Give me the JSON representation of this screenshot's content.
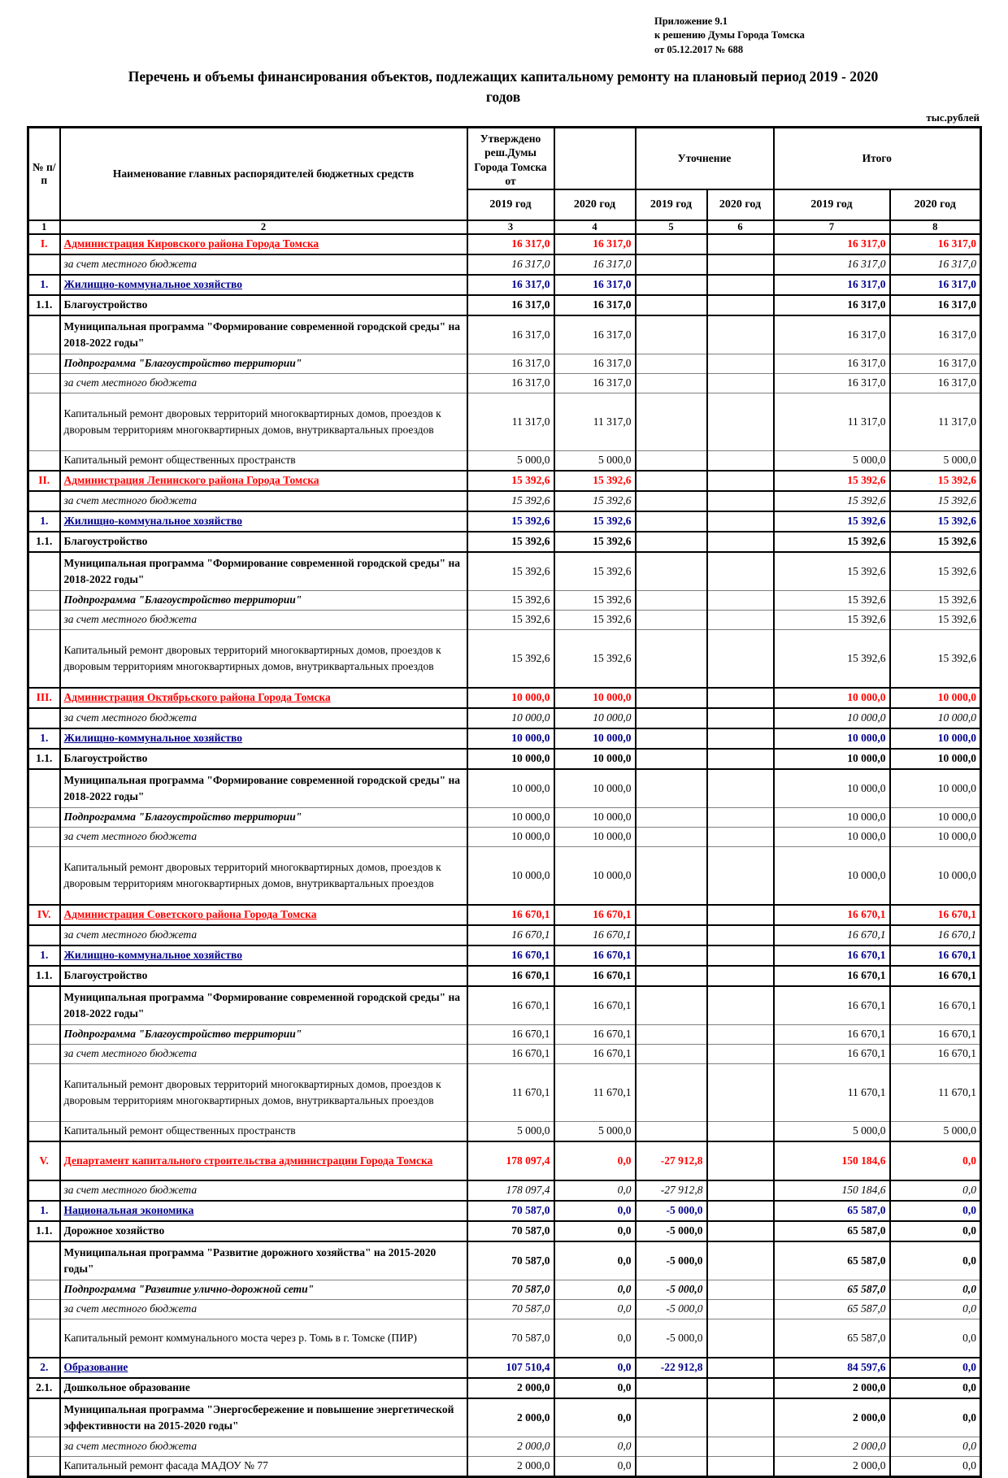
{
  "meta": {
    "appendix_lines": [
      "Приложение 9.1",
      "к решению Думы Города Томска",
      "от 05.12.2017 № 688"
    ],
    "title_line1": "Перечень и объемы финансирования объектов, подлежащих капитальному ремонту на плановый период  2019 - 2020",
    "title_line2": "годов",
    "units_label": "тыс.рублей",
    "accent_red": "#ff0000",
    "accent_blue": "#00008b"
  },
  "table": {
    "header": {
      "num": "№ п/п",
      "name": "Наименование главных распорядителей бюджетных средств",
      "approved": "Утверждено реш.Думы Города Томска от",
      "blank": "",
      "clarification": "Уточнение",
      "total": "Итого",
      "years": [
        "2019 год",
        "2020 год",
        "2019 год",
        "2020 год",
        "2019 год",
        "2020 год"
      ],
      "col_ids": [
        "1",
        "2",
        "3",
        "4",
        "5",
        "6",
        "7",
        "8"
      ]
    },
    "rows": [
      {
        "num": "I.",
        "name": "Администрация Кировского района Города Томска",
        "ns": "red",
        "vs": "red",
        "w": "heavy",
        "h": 1,
        "v": [
          "16 317,0",
          "16 317,0",
          "",
          "",
          "16 317,0",
          "16 317,0"
        ]
      },
      {
        "num": "",
        "name": "за счет местного бюджета",
        "ns": "i",
        "vs": "i",
        "w": "heavy",
        "h": 1,
        "v": [
          "16 317,0",
          "16 317,0",
          "",
          "",
          "16 317,0",
          "16 317,0"
        ]
      },
      {
        "num": "1.",
        "name": "Жилищно-коммунальное хозяйство",
        "ns": "blue",
        "vs": "blue",
        "w": "heavy",
        "h": 1,
        "v": [
          "16 317,0",
          "16 317,0",
          "",
          "",
          "16 317,0",
          "16 317,0"
        ]
      },
      {
        "num": "1.1.",
        "name": "Благоустройство",
        "ns": "b",
        "vs": "b",
        "w": "heavy",
        "h": 1,
        "v": [
          "16 317,0",
          "16 317,0",
          "",
          "",
          "16 317,0",
          "16 317,0"
        ]
      },
      {
        "num": "",
        "name": "Муниципальная программа \"Формирование современной городской среды\" на 2018-2022 годы\"",
        "ns": "b",
        "vs": "n",
        "w": "light",
        "h": 2,
        "v": [
          "16 317,0",
          "16 317,0",
          "",
          "",
          "16 317,0",
          "16 317,0"
        ]
      },
      {
        "num": "",
        "name": "Подпрограмма \"Благоустройство территории\"",
        "ns": "bi",
        "vs": "n",
        "w": "light",
        "h": 1,
        "v": [
          "16 317,0",
          "16 317,0",
          "",
          "",
          "16 317,0",
          "16 317,0"
        ]
      },
      {
        "num": "",
        "name": "за счет местного бюджета",
        "ns": "i",
        "vs": "n",
        "w": "light",
        "h": 1,
        "v": [
          "16 317,0",
          "16 317,0",
          "",
          "",
          "16 317,0",
          "16 317,0"
        ]
      },
      {
        "num": "",
        "name": "Капитальный ремонт дворовых территорий многоквартирных домов, проездов к дворовым территориям многоквартирных домов, внутриквартальных проездов",
        "ns": "n",
        "vs": "n",
        "w": "light",
        "h": 3,
        "v": [
          "11 317,0",
          "11 317,0",
          "",
          "",
          "11 317,0",
          "11 317,0"
        ]
      },
      {
        "num": "",
        "name": "Капитальный ремонт общественных пространств",
        "ns": "n",
        "vs": "n",
        "w": "light",
        "h": 1,
        "v": [
          "5 000,0",
          "5 000,0",
          "",
          "",
          "5 000,0",
          "5 000,0"
        ]
      },
      {
        "num": "II.",
        "name": "Администрация Ленинского района Города Томска",
        "ns": "red",
        "vs": "red",
        "w": "heavy",
        "h": 1,
        "v": [
          "15 392,6",
          "15 392,6",
          "",
          "",
          "15 392,6",
          "15 392,6"
        ]
      },
      {
        "num": "",
        "name": "за счет местного бюджета",
        "ns": "i",
        "vs": "i",
        "w": "heavy",
        "h": 1,
        "v": [
          "15 392,6",
          "15 392,6",
          "",
          "",
          "15 392,6",
          "15 392,6"
        ]
      },
      {
        "num": "1.",
        "name": "Жилищно-коммунальное хозяйство",
        "ns": "blue",
        "vs": "blue",
        "w": "heavy",
        "h": 1,
        "v": [
          "15 392,6",
          "15 392,6",
          "",
          "",
          "15 392,6",
          "15 392,6"
        ]
      },
      {
        "num": "1.1.",
        "name": "Благоустройство",
        "ns": "b",
        "vs": "b",
        "w": "heavy",
        "h": 1,
        "v": [
          "15 392,6",
          "15 392,6",
          "",
          "",
          "15 392,6",
          "15 392,6"
        ]
      },
      {
        "num": "",
        "name": "Муниципальная программа \"Формирование современной городской среды\" на 2018-2022 годы\"",
        "ns": "b",
        "vs": "n",
        "w": "light",
        "h": 2,
        "v": [
          "15 392,6",
          "15 392,6",
          "",
          "",
          "15 392,6",
          "15 392,6"
        ]
      },
      {
        "num": "",
        "name": "Подпрограмма \"Благоустройство территории\"",
        "ns": "bi",
        "vs": "n",
        "w": "light",
        "h": 1,
        "v": [
          "15 392,6",
          "15 392,6",
          "",
          "",
          "15 392,6",
          "15 392,6"
        ]
      },
      {
        "num": "",
        "name": "за счет местного бюджета",
        "ns": "i",
        "vs": "n",
        "w": "light",
        "h": 1,
        "v": [
          "15 392,6",
          "15 392,6",
          "",
          "",
          "15 392,6",
          "15 392,6"
        ]
      },
      {
        "num": "",
        "name": "Капитальный ремонт дворовых территорий многоквартирных домов, проездов к дворовым территориям многоквартирных домов, внутриквартальных проездов",
        "ns": "n",
        "vs": "n",
        "w": "light",
        "h": 3,
        "v": [
          "15 392,6",
          "15 392,6",
          "",
          "",
          "15 392,6",
          "15 392,6"
        ]
      },
      {
        "num": "III.",
        "name": "Администрация Октябрьского района Города Томска",
        "ns": "red",
        "vs": "red",
        "w": "heavy",
        "h": 1,
        "v": [
          "10 000,0",
          "10 000,0",
          "",
          "",
          "10 000,0",
          "10 000,0"
        ]
      },
      {
        "num": "",
        "name": "за счет местного бюджета",
        "ns": "i",
        "vs": "i",
        "w": "heavy",
        "h": 1,
        "v": [
          "10 000,0",
          "10 000,0",
          "",
          "",
          "10 000,0",
          "10 000,0"
        ]
      },
      {
        "num": "1.",
        "name": "Жилищно-коммунальное хозяйство",
        "ns": "blue",
        "vs": "blue",
        "w": "heavy",
        "h": 1,
        "v": [
          "10 000,0",
          "10 000,0",
          "",
          "",
          "10 000,0",
          "10 000,0"
        ]
      },
      {
        "num": "1.1.",
        "name": "Благоустройство",
        "ns": "b",
        "vs": "b",
        "w": "heavy",
        "h": 1,
        "v": [
          "10 000,0",
          "10 000,0",
          "",
          "",
          "10 000,0",
          "10 000,0"
        ]
      },
      {
        "num": "",
        "name": "Муниципальная программа \"Формирование современной городской среды\" на 2018-2022 годы\"",
        "ns": "b",
        "vs": "n",
        "w": "light",
        "h": 2,
        "v": [
          "10 000,0",
          "10 000,0",
          "",
          "",
          "10 000,0",
          "10 000,0"
        ]
      },
      {
        "num": "",
        "name": "Подпрограмма \"Благоустройство территории\"",
        "ns": "bi",
        "vs": "n",
        "w": "light",
        "h": 1,
        "v": [
          "10 000,0",
          "10 000,0",
          "",
          "",
          "10 000,0",
          "10 000,0"
        ]
      },
      {
        "num": "",
        "name": "за счет местного бюджета",
        "ns": "i",
        "vs": "n",
        "w": "light",
        "h": 1,
        "v": [
          "10 000,0",
          "10 000,0",
          "",
          "",
          "10 000,0",
          "10 000,0"
        ]
      },
      {
        "num": "",
        "name": "Капитальный ремонт дворовых территорий многоквартирных домов, проездов к дворовым территориям многоквартирных домов, внутриквартальных проездов",
        "ns": "n",
        "vs": "n",
        "w": "light",
        "h": 3,
        "v": [
          "10 000,0",
          "10 000,0",
          "",
          "",
          "10 000,0",
          "10 000,0"
        ]
      },
      {
        "num": "IV.",
        "name": "Администрация Советского района Города Томска",
        "ns": "red",
        "vs": "red",
        "w": "heavy",
        "h": 1,
        "v": [
          "16 670,1",
          "16 670,1",
          "",
          "",
          "16 670,1",
          "16 670,1"
        ]
      },
      {
        "num": "",
        "name": "за счет местного бюджета",
        "ns": "i",
        "vs": "i",
        "w": "heavy",
        "h": 1,
        "v": [
          "16 670,1",
          "16 670,1",
          "",
          "",
          "16 670,1",
          "16 670,1"
        ]
      },
      {
        "num": "1.",
        "name": "Жилищно-коммунальное хозяйство",
        "ns": "blue",
        "vs": "blue",
        "w": "heavy",
        "h": 1,
        "v": [
          "16 670,1",
          "16 670,1",
          "",
          "",
          "16 670,1",
          "16 670,1"
        ]
      },
      {
        "num": "1.1.",
        "name": "Благоустройство",
        "ns": "b",
        "vs": "b",
        "w": "heavy",
        "h": 1,
        "v": [
          "16 670,1",
          "16 670,1",
          "",
          "",
          "16 670,1",
          "16 670,1"
        ]
      },
      {
        "num": "",
        "name": "Муниципальная программа \"Формирование современной городской среды\" на 2018-2022 годы\"",
        "ns": "b",
        "vs": "n",
        "w": "light",
        "h": 2,
        "v": [
          "16 670,1",
          "16 670,1",
          "",
          "",
          "16 670,1",
          "16 670,1"
        ]
      },
      {
        "num": "",
        "name": "Подпрограмма \"Благоустройство территории\"",
        "ns": "bi",
        "vs": "n",
        "w": "light",
        "h": 1,
        "v": [
          "16 670,1",
          "16 670,1",
          "",
          "",
          "16 670,1",
          "16 670,1"
        ]
      },
      {
        "num": "",
        "name": "за счет местного бюджета",
        "ns": "i",
        "vs": "n",
        "w": "light",
        "h": 1,
        "v": [
          "16 670,1",
          "16 670,1",
          "",
          "",
          "16 670,1",
          "16 670,1"
        ]
      },
      {
        "num": "",
        "name": "Капитальный ремонт дворовых территорий многоквартирных домов, проездов к дворовым территориям многоквартирных домов, внутриквартальных проездов",
        "ns": "n",
        "vs": "n",
        "w": "light",
        "h": 3,
        "v": [
          "11 670,1",
          "11 670,1",
          "",
          "",
          "11 670,1",
          "11 670,1"
        ]
      },
      {
        "num": "",
        "name": "Капитальный ремонт общественных пространств",
        "ns": "n",
        "vs": "n",
        "w": "light",
        "h": 1,
        "v": [
          "5 000,0",
          "5 000,0",
          "",
          "",
          "5 000,0",
          "5 000,0"
        ]
      },
      {
        "num": "V.",
        "name": "Департамент капитального строительства администрации Города Томска",
        "ns": "red",
        "vs": "red",
        "w": "heavy",
        "h": 2,
        "v": [
          "178 097,4",
          "0,0",
          "-27 912,8",
          "",
          "150 184,6",
          "0,0"
        ]
      },
      {
        "num": "",
        "name": "за счет местного бюджета",
        "ns": "i",
        "vs": "i",
        "w": "heavy",
        "h": 1,
        "v": [
          "178 097,4",
          "0,0",
          "-27 912,8",
          "",
          "150 184,6",
          "0,0"
        ]
      },
      {
        "num": "1.",
        "name": "Национальная экономика",
        "ns": "blue",
        "vs": "blue",
        "w": "heavy",
        "h": 1,
        "v": [
          "70 587,0",
          "0,0",
          "-5 000,0",
          "",
          "65 587,0",
          "0,0"
        ]
      },
      {
        "num": "1.1.",
        "name": "Дорожное хозяйство",
        "ns": "b",
        "vs": "b",
        "w": "heavy",
        "h": 1,
        "v": [
          "70 587,0",
          "0,0",
          "-5 000,0",
          "",
          "65 587,0",
          "0,0"
        ]
      },
      {
        "num": "",
        "name": "Муниципальная программа \"Развитие дорожного хозяйства\" на 2015-2020 годы\"",
        "ns": "b",
        "vs": "b",
        "w": "light",
        "h": 2,
        "v": [
          "70 587,0",
          "0,0",
          "-5 000,0",
          "",
          "65 587,0",
          "0,0"
        ]
      },
      {
        "num": "",
        "name": "Подпрограмма \"Развитие улично-дорожной сети\"",
        "ns": "bi",
        "vs": "bi",
        "w": "light",
        "h": 1,
        "v": [
          "70 587,0",
          "0,0",
          "-5 000,0",
          "",
          "65 587,0",
          "0,0"
        ]
      },
      {
        "num": "",
        "name": "за счет  местного бюджета",
        "ns": "i",
        "vs": "i",
        "w": "light",
        "h": 1,
        "v": [
          "70 587,0",
          "0,0",
          "-5 000,0",
          "",
          "65 587,0",
          "0,0"
        ]
      },
      {
        "num": "",
        "name": "Капитальный ремонт коммунального моста через р. Томь в г. Томске (ПИР)",
        "ns": "n",
        "vs": "n",
        "w": "light",
        "h": 2,
        "v": [
          "70 587,0",
          "0,0",
          "-5 000,0",
          "",
          "65 587,0",
          "0,0"
        ]
      },
      {
        "num": "2.",
        "name": "Образование",
        "ns": "blue",
        "vs": "blue",
        "w": "heavy",
        "h": 1,
        "v": [
          "107 510,4",
          "0,0",
          "-22 912,8",
          "",
          "84 597,6",
          "0,0"
        ]
      },
      {
        "num": "2.1.",
        "name": "Дошкольное образование",
        "ns": "b",
        "vs": "b",
        "w": "heavy",
        "h": 1,
        "v": [
          "2 000,0",
          "0,0",
          "",
          "",
          "2 000,0",
          "0,0"
        ]
      },
      {
        "num": "",
        "name": "Муниципальная программа \"Энергосбережение и повышение энергетической эффективности на 2015-2020 годы\"",
        "ns": "b",
        "vs": "b",
        "w": "light",
        "h": 2,
        "v": [
          "2 000,0",
          "0,0",
          "",
          "",
          "2 000,0",
          "0,0"
        ]
      },
      {
        "num": "",
        "name": "за счет местного бюджета",
        "ns": "i",
        "vs": "i",
        "w": "light",
        "h": 1,
        "v": [
          "2 000,0",
          "0,0",
          "",
          "",
          "2 000,0",
          "0,0"
        ]
      },
      {
        "num": "",
        "name": "Капитальный ремонт фасада МАДОУ № 77",
        "ns": "n",
        "vs": "n",
        "w": "light",
        "h": 1,
        "v": [
          "2 000,0",
          "0,0",
          "",
          "",
          "2 000,0",
          "0,0"
        ]
      }
    ]
  }
}
